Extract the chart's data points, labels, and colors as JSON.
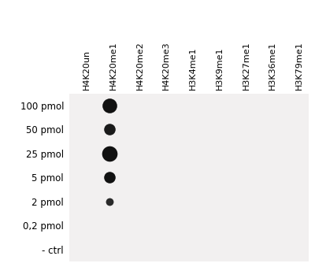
{
  "columns": [
    "H4K20un",
    "H4K20me1",
    "H4K20me2",
    "H4K20me3",
    "H3K4me1",
    "H3K9me1",
    "H3K27me1",
    "H3K36me1",
    "H3K79me1"
  ],
  "rows": [
    "100 pmol",
    "50 pmol",
    "25 pmol",
    "5 pmol",
    "2 pmol",
    "0,2 pmol",
    "- ctrl"
  ],
  "dots": [
    {
      "col": 1,
      "row": 0,
      "size": 180,
      "color": "#111111"
    },
    {
      "col": 1,
      "row": 1,
      "size": 110,
      "color": "#1a1a1a"
    },
    {
      "col": 1,
      "row": 2,
      "size": 200,
      "color": "#111111"
    },
    {
      "col": 1,
      "row": 3,
      "size": 110,
      "color": "#111111"
    },
    {
      "col": 1,
      "row": 4,
      "size": 50,
      "color": "#2a2a2a"
    }
  ],
  "bg_color": "#ffffff",
  "plot_bg_color": "#f2f0f0",
  "col_label_fontsize": 8.0,
  "row_label_fontsize": 8.5,
  "col_label_rotation": 90
}
